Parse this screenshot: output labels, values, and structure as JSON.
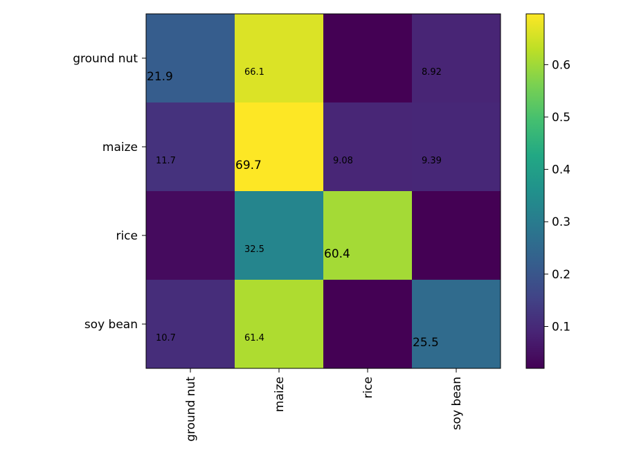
{
  "chart_data": {
    "type": "heatmap",
    "rows": [
      "ground nut",
      "maize",
      "rice",
      "soy bean"
    ],
    "columns": [
      "ground nut",
      "maize",
      "rice",
      "soy bean"
    ],
    "values": [
      [
        0.219,
        0.661,
        0.02,
        0.089
      ],
      [
        0.117,
        0.697,
        0.091,
        0.094
      ],
      [
        0.04,
        0.325,
        0.604,
        0.02
      ],
      [
        0.107,
        0.614,
        0.02,
        0.255
      ]
    ],
    "cell_labels": [
      [
        "21.9",
        "66.1",
        "",
        "8.92"
      ],
      [
        "11.7",
        "69.7",
        "9.08",
        "9.39"
      ],
      [
        "",
        "32.5",
        "60.4",
        ""
      ],
      [
        "10.7",
        "61.4",
        "",
        "25.5"
      ]
    ],
    "diagonal_emphasis": true,
    "colormap": "viridis",
    "colorbar": {
      "min": 0.02,
      "max": 0.697,
      "ticks": [
        0.1,
        0.2,
        0.3,
        0.4,
        0.5,
        0.6
      ],
      "tick_labels": [
        "0.1",
        "0.2",
        "0.3",
        "0.4",
        "0.5",
        "0.6"
      ]
    },
    "title": "",
    "xlabel": "",
    "ylabel": "",
    "grid": false
  }
}
